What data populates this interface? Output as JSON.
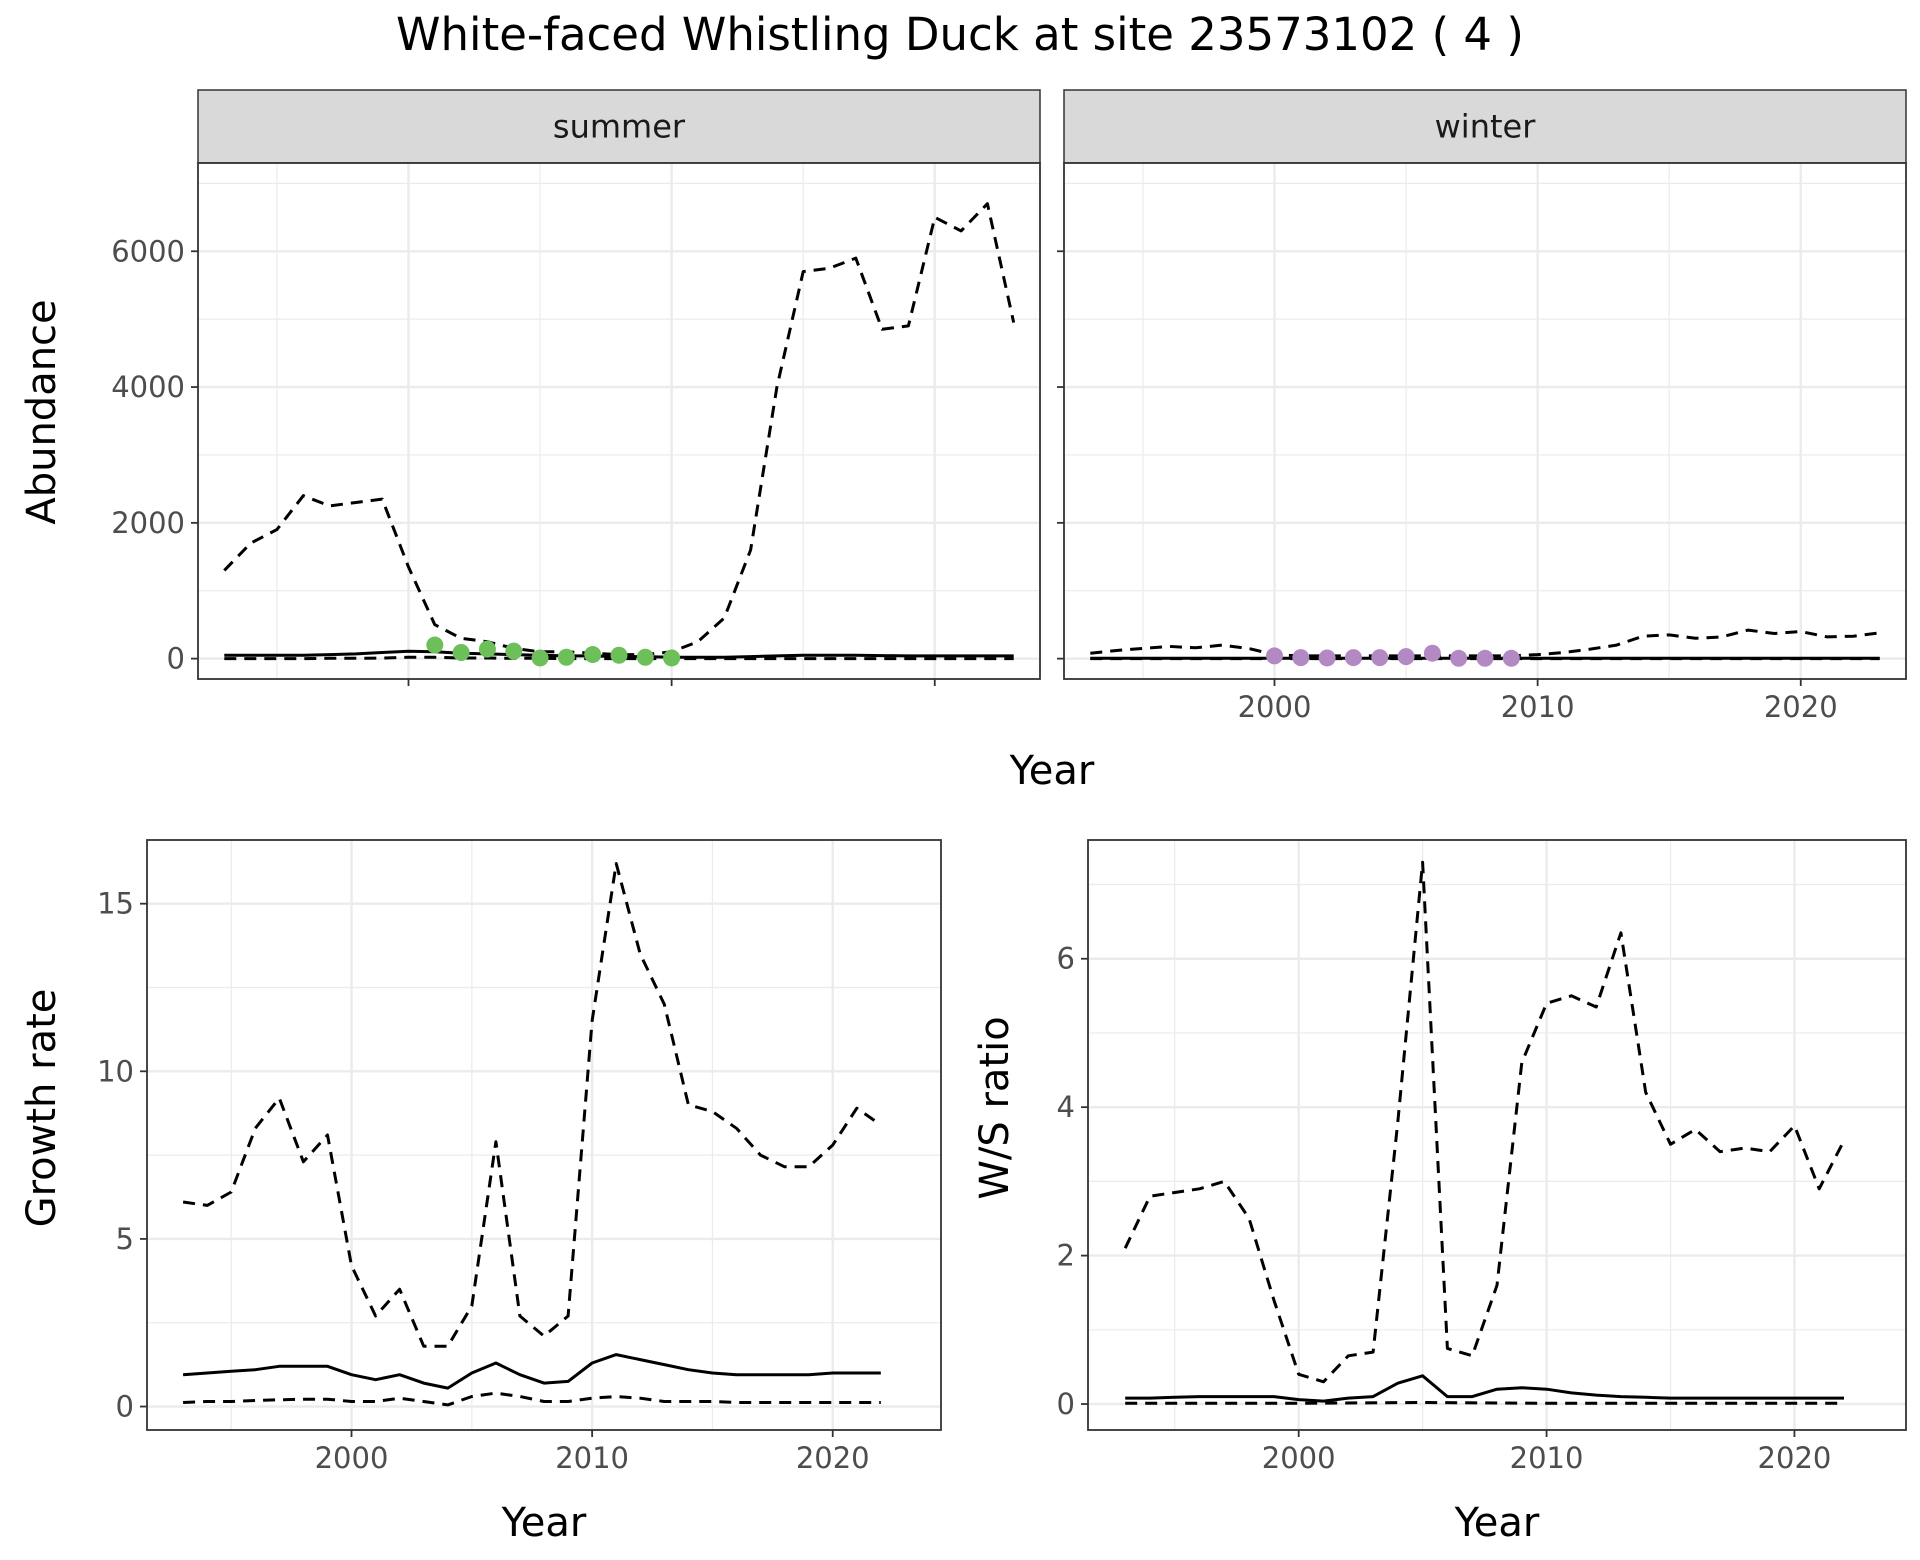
{
  "title": "White-faced Whistling Duck at site 23573102 ( 4 )",
  "colors": {
    "summer_points": "#6dbf5a",
    "winter_points": "#b389c4",
    "line": "#000000",
    "strip_bg": "#d9d9d9",
    "grid": "#ebebeb",
    "panel_border": "#333333"
  },
  "chart_data": [
    {
      "id": "abundance-summer",
      "type": "line",
      "facet_label": "summer",
      "facet_group": "abundance",
      "xlabel": "Year",
      "ylabel": "Abundance",
      "xlim": [
        1992,
        2024
      ],
      "ylim": [
        -300,
        7300
      ],
      "xticks": [
        2000,
        2010,
        2020
      ],
      "xminor": [
        1995,
        2005,
        2015
      ],
      "yticks": [
        0,
        2000,
        4000,
        6000
      ],
      "yminor": [
        1000,
        3000,
        5000,
        7000
      ],
      "x_axis_text": false,
      "y_axis_text": true,
      "grid": true,
      "lines": [
        {
          "style": "solid",
          "x": [
            1993,
            1994,
            1995,
            1996,
            1997,
            1998,
            1999,
            2000,
            2001,
            2002,
            2003,
            2004,
            2005,
            2006,
            2007,
            2008,
            2009,
            2010,
            2011,
            2012,
            2013,
            2014,
            2015,
            2016,
            2017,
            2018,
            2019,
            2020,
            2021,
            2022,
            2023
          ],
          "y": [
            50,
            50,
            50,
            50,
            60,
            70,
            90,
            110,
            100,
            80,
            70,
            60,
            50,
            40,
            40,
            30,
            30,
            20,
            20,
            20,
            30,
            40,
            50,
            50,
            50,
            45,
            40,
            40,
            40,
            40,
            40
          ]
        },
        {
          "style": "dashed",
          "x": [
            1993,
            1994,
            1995,
            1996,
            1997,
            1998,
            1999,
            2000,
            2001,
            2002,
            2003,
            2004,
            2005,
            2006,
            2007,
            2008,
            2009,
            2010,
            2011,
            2012,
            2013,
            2014,
            2015,
            2016,
            2017,
            2018,
            2019,
            2020,
            2021,
            2022,
            2023
          ],
          "y": [
            1300,
            1700,
            1900,
            2400,
            2250,
            2300,
            2350,
            1350,
            500,
            300,
            250,
            150,
            100,
            100,
            80,
            60,
            60,
            100,
            250,
            600,
            1600,
            4000,
            5700,
            5750,
            5900,
            4850,
            4900,
            6500,
            6300,
            6700,
            4950
          ]
        },
        {
          "style": "dashed",
          "x": [
            1993,
            1994,
            1995,
            1996,
            1997,
            1998,
            1999,
            2000,
            2001,
            2002,
            2003,
            2004,
            2005,
            2006,
            2007,
            2008,
            2009,
            2010,
            2011,
            2012,
            2013,
            2014,
            2015,
            2016,
            2017,
            2018,
            2019,
            2020,
            2021,
            2022,
            2023
          ],
          "y": [
            0,
            0,
            0,
            0,
            5,
            5,
            10,
            20,
            20,
            10,
            10,
            5,
            5,
            0,
            0,
            0,
            0,
            0,
            0,
            0,
            0,
            0,
            0,
            0,
            0,
            0,
            0,
            0,
            0,
            0,
            0
          ]
        }
      ],
      "points": {
        "x": [
          2001,
          2002,
          2003,
          2004,
          2005,
          2006,
          2007,
          2008,
          2009,
          2010
        ],
        "y": [
          200,
          90,
          140,
          110,
          10,
          20,
          60,
          50,
          20,
          10
        ]
      }
    },
    {
      "id": "abundance-winter",
      "type": "line",
      "facet_label": "winter",
      "facet_group": "abundance",
      "xlabel": "Year",
      "ylabel": "Abundance",
      "xlim": [
        1992,
        2024
      ],
      "ylim": [
        -300,
        7300
      ],
      "xticks": [
        2000,
        2010,
        2020
      ],
      "xminor": [
        1995,
        2005,
        2015
      ],
      "yticks": [
        0,
        2000,
        4000,
        6000
      ],
      "yminor": [
        1000,
        3000,
        5000,
        7000
      ],
      "x_axis_text": true,
      "y_axis_text": false,
      "grid": true,
      "lines": [
        {
          "style": "solid",
          "x": [
            1993,
            1995,
            2000,
            2005,
            2010,
            2015,
            2020,
            2023
          ],
          "y": [
            5,
            5,
            5,
            5,
            5,
            5,
            5,
            5
          ]
        },
        {
          "style": "dashed",
          "x": [
            1993,
            1994,
            1995,
            1996,
            1997,
            1998,
            1999,
            2000,
            2001,
            2002,
            2003,
            2004,
            2005,
            2006,
            2007,
            2008,
            2009,
            2010,
            2011,
            2012,
            2013,
            2014,
            2015,
            2016,
            2017,
            2018,
            2019,
            2020,
            2021,
            2022,
            2023
          ],
          "y": [
            80,
            120,
            150,
            180,
            160,
            200,
            150,
            60,
            40,
            40,
            40,
            40,
            40,
            40,
            40,
            40,
            40,
            60,
            90,
            140,
            200,
            330,
            350,
            300,
            320,
            420,
            370,
            400,
            320,
            330,
            380
          ]
        },
        {
          "style": "dashed",
          "x": [
            1993,
            2023
          ],
          "y": [
            0,
            0
          ]
        }
      ],
      "points": {
        "x": [
          2000,
          2001,
          2002,
          2003,
          2004,
          2005,
          2006,
          2007,
          2008,
          2009
        ],
        "y": [
          40,
          15,
          10,
          15,
          15,
          30,
          80,
          5,
          5,
          5
        ]
      }
    },
    {
      "id": "growth-rate",
      "type": "line",
      "xlabel": "Year",
      "ylabel": "Growth rate",
      "xlim": [
        1991.5,
        2024.5
      ],
      "ylim": [
        -0.7,
        16.9
      ],
      "xticks": [
        2000,
        2010,
        2020
      ],
      "xminor": [
        1995,
        2005,
        2015
      ],
      "yticks": [
        0,
        5,
        10,
        15
      ],
      "yminor": [
        2.5,
        7.5,
        12.5
      ],
      "x_axis_text": true,
      "y_axis_text": true,
      "grid": true,
      "lines": [
        {
          "style": "solid",
          "x": [
            1993,
            1994,
            1995,
            1996,
            1997,
            1998,
            1999,
            2000,
            2001,
            2002,
            2003,
            2004,
            2005,
            2006,
            2007,
            2008,
            2009,
            2010,
            2011,
            2012,
            2013,
            2014,
            2015,
            2016,
            2017,
            2018,
            2019,
            2020,
            2021,
            2022
          ],
          "y": [
            0.95,
            1.0,
            1.05,
            1.1,
            1.2,
            1.2,
            1.2,
            0.95,
            0.8,
            0.95,
            0.7,
            0.55,
            1.0,
            1.3,
            0.95,
            0.7,
            0.75,
            1.3,
            1.55,
            1.4,
            1.25,
            1.1,
            1.0,
            0.95,
            0.95,
            0.95,
            0.95,
            1.0,
            1.0,
            1.0
          ]
        },
        {
          "style": "dashed",
          "x": [
            1993,
            1994,
            1995,
            1996,
            1997,
            1998,
            1999,
            2000,
            2001,
            2002,
            2003,
            2004,
            2005,
            2006,
            2007,
            2008,
            2009,
            2010,
            2011,
            2012,
            2013,
            2014,
            2015,
            2016,
            2017,
            2018,
            2019,
            2020,
            2021,
            2022
          ],
          "y": [
            6.1,
            6.0,
            6.4,
            8.3,
            9.2,
            7.3,
            8.1,
            4.2,
            2.7,
            3.5,
            1.8,
            1.8,
            3.0,
            7.9,
            2.7,
            2.1,
            2.7,
            11.5,
            16.2,
            13.5,
            12.0,
            9.0,
            8.8,
            8.3,
            7.5,
            7.15,
            7.15,
            7.8,
            8.9,
            8.4
          ]
        },
        {
          "style": "dashed",
          "x": [
            1993,
            1994,
            1995,
            1996,
            1997,
            1998,
            1999,
            2000,
            2001,
            2002,
            2003,
            2004,
            2005,
            2006,
            2007,
            2008,
            2009,
            2010,
            2011,
            2012,
            2013,
            2014,
            2015,
            2016,
            2017,
            2018,
            2019,
            2020,
            2021,
            2022
          ],
          "y": [
            0.12,
            0.15,
            0.15,
            0.18,
            0.2,
            0.22,
            0.22,
            0.15,
            0.15,
            0.25,
            0.15,
            0.05,
            0.3,
            0.4,
            0.3,
            0.15,
            0.15,
            0.25,
            0.3,
            0.25,
            0.15,
            0.15,
            0.15,
            0.12,
            0.12,
            0.12,
            0.12,
            0.12,
            0.12,
            0.12
          ]
        }
      ]
    },
    {
      "id": "ws-ratio",
      "type": "line",
      "xlabel": "Year",
      "ylabel": "W/S ratio",
      "xlim": [
        1991.5,
        2024.5
      ],
      "ylim": [
        -0.35,
        7.6
      ],
      "xticks": [
        2000,
        2010,
        2020
      ],
      "xminor": [
        1995,
        2005,
        2015
      ],
      "yticks": [
        0,
        2,
        4,
        6
      ],
      "yminor": [
        1,
        3,
        5,
        7
      ],
      "x_axis_text": true,
      "y_axis_text": true,
      "grid": true,
      "lines": [
        {
          "style": "solid",
          "x": [
            1993,
            1994,
            1995,
            1996,
            1997,
            1998,
            1999,
            2000,
            2001,
            2002,
            2003,
            2004,
            2005,
            2006,
            2007,
            2008,
            2009,
            2010,
            2011,
            2012,
            2013,
            2014,
            2015,
            2016,
            2017,
            2018,
            2019,
            2020,
            2021,
            2022
          ],
          "y": [
            0.08,
            0.08,
            0.09,
            0.1,
            0.1,
            0.1,
            0.1,
            0.06,
            0.04,
            0.08,
            0.1,
            0.28,
            0.38,
            0.1,
            0.1,
            0.2,
            0.22,
            0.2,
            0.15,
            0.12,
            0.1,
            0.09,
            0.08,
            0.08,
            0.08,
            0.08,
            0.08,
            0.08,
            0.08,
            0.08
          ]
        },
        {
          "style": "dashed",
          "x": [
            1993,
            1994,
            1995,
            1996,
            1997,
            1998,
            1999,
            2000,
            2001,
            2002,
            2003,
            2004,
            2005,
            2006,
            2007,
            2008,
            2009,
            2010,
            2011,
            2012,
            2013,
            2014,
            2015,
            2016,
            2017,
            2018,
            2019,
            2020,
            2021,
            2022
          ],
          "y": [
            2.1,
            2.8,
            2.85,
            2.9,
            3.0,
            2.5,
            1.4,
            0.4,
            0.3,
            0.65,
            0.7,
            3.8,
            7.3,
            0.75,
            0.65,
            1.6,
            4.6,
            5.4,
            5.5,
            5.35,
            6.35,
            4.2,
            3.5,
            3.7,
            3.4,
            3.45,
            3.4,
            3.75,
            2.9,
            3.55
          ]
        },
        {
          "style": "dashed",
          "x": [
            1993,
            1995,
            2000,
            2005,
            2010,
            2015,
            2020,
            2022
          ],
          "y": [
            0.01,
            0.01,
            0.01,
            0.02,
            0.01,
            0.01,
            0.01,
            0.01
          ]
        }
      ]
    }
  ]
}
